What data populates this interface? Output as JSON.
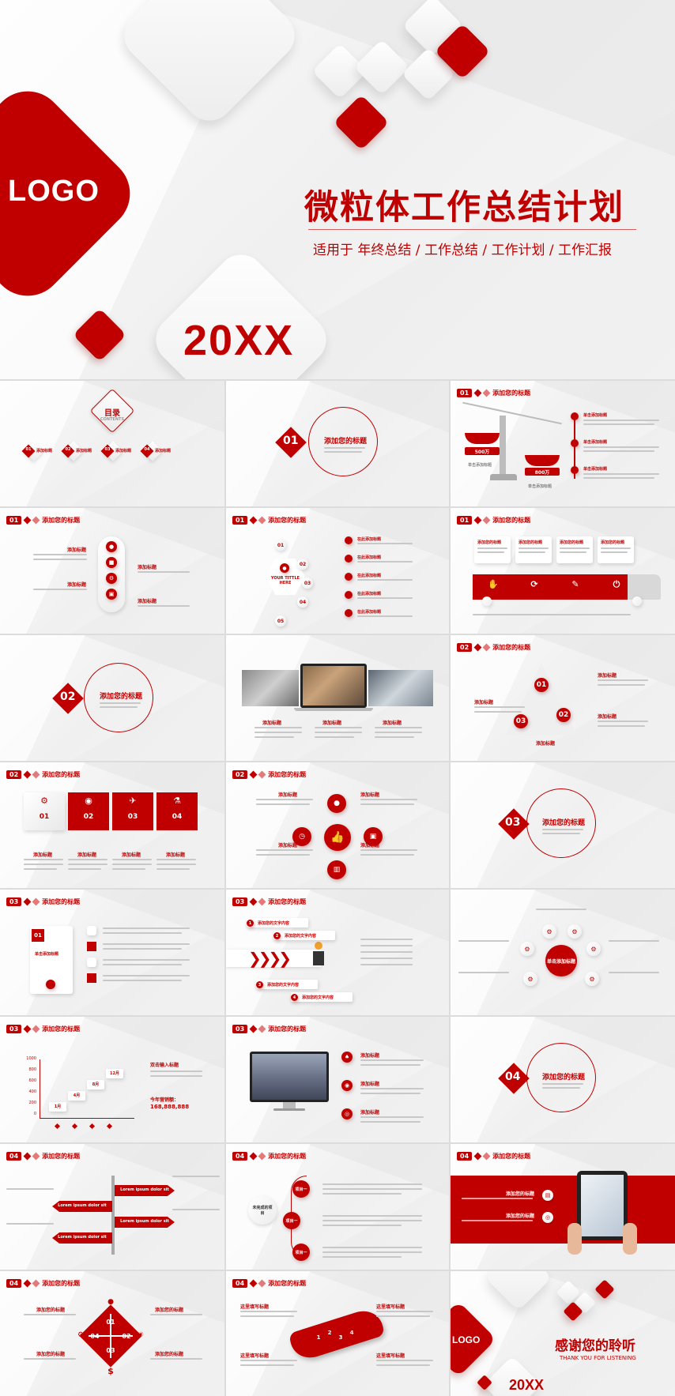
{
  "cover": {
    "logo": "LOGO",
    "title": "微粒体工作总结计划",
    "subtitle": "适用于  年终总结 / 工作总结 / 工作计划 / 工作汇报",
    "year": "20XX",
    "brand_color": "#c00000"
  },
  "common": {
    "slide_title": "添加您的标题",
    "slide_title_alt": "添加你的标题",
    "sub_title": "添加标题",
    "en_caption": "Add your text here"
  },
  "toc": {
    "title": "目录",
    "subtitle": "CONTENTS",
    "items": [
      {
        "num": "01",
        "label": "添加标题"
      },
      {
        "num": "02",
        "label": "添加标题"
      },
      {
        "num": "03",
        "label": "添加标题"
      },
      {
        "num": "04",
        "label": "添加标题"
      }
    ]
  },
  "sections": [
    {
      "num": "01",
      "title": "添加您的标题"
    },
    {
      "num": "02",
      "title": "添加您的标题"
    },
    {
      "num": "03",
      "title": "添加您的标题"
    },
    {
      "num": "04",
      "title": "添加您的标题"
    }
  ],
  "scale_slide": {
    "left_value": "500万",
    "right_value": "800万",
    "left_label": "单击添加标题",
    "right_label": "单击添加标题",
    "items": [
      "单击添加标题",
      "单击添加标题",
      "单击添加标题"
    ]
  },
  "hex_slide": {
    "center": "YOUR TITTLE HERE",
    "nums": [
      "01",
      "02",
      "03",
      "04",
      "05"
    ],
    "items": [
      "在此添加标题",
      "在此添加标题",
      "在此添加标题",
      "在此添加标题",
      "在此添加标题"
    ]
  },
  "truck_slide": {
    "items": [
      "添加您的标题",
      "添加您的标题",
      "添加您的标题",
      "添加您的标题"
    ]
  },
  "photo_slide": {
    "items": [
      "添加标题",
      "添加标题",
      "添加标题"
    ]
  },
  "cycle_slide": {
    "nums": [
      "01",
      "02",
      "03"
    ],
    "items": [
      "添加标题",
      "添加标题",
      "添加标题",
      "添加标题"
    ]
  },
  "puzzle_slide": {
    "nums": [
      "01",
      "02",
      "03",
      "04"
    ],
    "items": [
      "添加标题",
      "添加标题",
      "添加标题",
      "添加标题"
    ]
  },
  "icon_slide": {
    "items": [
      "添加标题",
      "添加标题",
      "添加标题",
      "添加标题"
    ]
  },
  "list_slide": {
    "num": "01",
    "label": "单击添加标题"
  },
  "arrow_slide": {
    "items": [
      "添加您的文字内容",
      "添加您的文字内容",
      "添加您的文字内容",
      "添加您的文字内容"
    ],
    "nums": [
      "1",
      "2",
      "3",
      "4"
    ]
  },
  "gear_slide": {
    "center": "单击添加标题"
  },
  "stairs_slide": {
    "title": "双击输入标题",
    "sum_label": "今年营销额：",
    "sum": "168,888,888",
    "yvals": [
      "1000",
      "800",
      "600",
      "400",
      "200",
      "0"
    ],
    "steps": [
      "1月",
      "4月",
      "8月",
      "12月"
    ]
  },
  "monitor_slide": {
    "items": [
      "添加标题",
      "添加标题",
      "添加标题"
    ]
  },
  "signpost_slide": {
    "items": [
      "Lorem ipsum dolor sit",
      "Lorem ipsum dolor sit",
      "Lorem ipsum dolor sit",
      "Lorem ipsum dolor sit"
    ]
  },
  "timeline_slide": {
    "center": "未完成的项目",
    "items": [
      "项目一",
      "项目一",
      "项目一"
    ]
  },
  "tablet_slide": {
    "items": [
      "添加您的标题",
      "添加您的标题"
    ]
  },
  "cross_slide": {
    "nums": [
      "01",
      "02",
      "03",
      "04"
    ],
    "items": [
      "添加您的标题",
      "添加您的标题",
      "添加您的标题",
      "添加您的标题"
    ]
  },
  "wave_slide": {
    "items": [
      "这里填写标题",
      "这里填写标题",
      "这里填写标题",
      "这里填写标题"
    ],
    "nums": [
      "1",
      "2",
      "3",
      "4"
    ]
  },
  "end_slide": {
    "logo": "LOGO",
    "title": "感谢您的聆听",
    "subtitle": "THANK YOU FOR LISTENING",
    "year": "20XX"
  }
}
